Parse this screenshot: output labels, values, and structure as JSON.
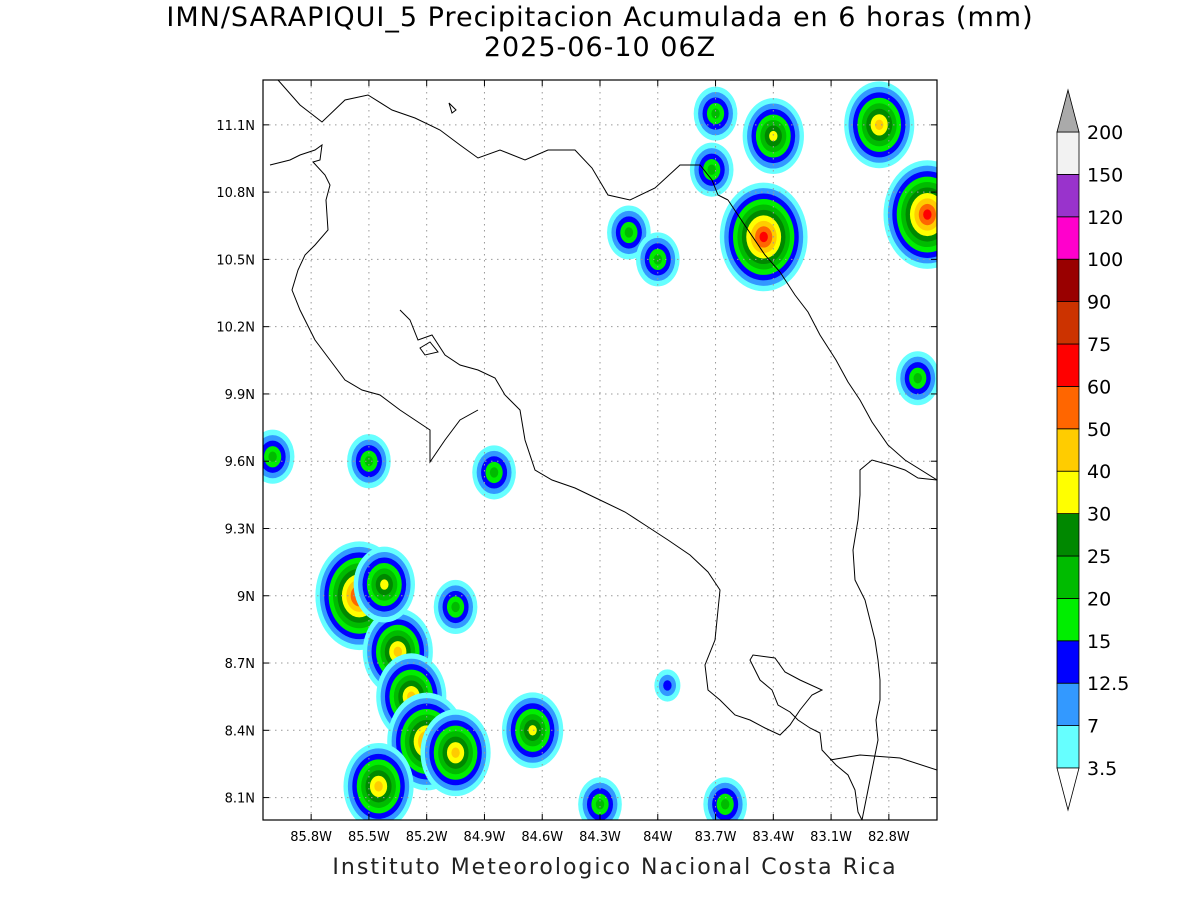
{
  "title_line1": "IMN/SARAPIQUI_5 Precipitacion Acumulada en 6 horas (mm)",
  "title_line2": "2025-06-10 06Z",
  "footer": "Instituto Meteorologico Nacional Costa Rica",
  "map": {
    "lon_range": [
      -86.05,
      -82.55
    ],
    "lat_range": [
      8.0,
      11.3
    ],
    "x_ticks": [
      "85.8W",
      "85.5W",
      "85.2W",
      "84.9W",
      "84.6W",
      "84.3W",
      "84W",
      "83.7W",
      "83.4W",
      "83.1W",
      "82.8W"
    ],
    "x_tick_values": [
      -85.8,
      -85.5,
      -85.2,
      -84.9,
      -84.6,
      -84.3,
      -84.0,
      -83.7,
      -83.4,
      -83.1,
      -82.8
    ],
    "y_ticks": [
      "8.1N",
      "8.4N",
      "8.7N",
      "9N",
      "9.3N",
      "9.6N",
      "9.9N",
      "10.2N",
      "10.5N",
      "10.8N",
      "11.1N"
    ],
    "y_tick_values": [
      8.1,
      8.4,
      8.7,
      9.0,
      9.3,
      9.6,
      9.9,
      10.2,
      10.5,
      10.8,
      11.1
    ],
    "grid": true,
    "grid_style": "dotted"
  },
  "colorbar": {
    "labels": [
      "3.5",
      "7",
      "12.5",
      "15",
      "20",
      "25",
      "30",
      "40",
      "50",
      "60",
      "75",
      "90",
      "100",
      "120",
      "150",
      "200"
    ],
    "colors": [
      "#66ffff",
      "#3399ff",
      "#0000ff",
      "#00ee00",
      "#00bb00",
      "#008800",
      "#ffff00",
      "#ffcc00",
      "#ff6600",
      "#ff0000",
      "#cc3300",
      "#990000",
      "#ff00cc",
      "#9933cc",
      "#f2f2f2",
      "#aaaaaa"
    ]
  },
  "precip_cells": [
    {
      "lon": -85.55,
      "lat": 9.0,
      "level": 9
    },
    {
      "lon": -85.35,
      "lat": 8.75,
      "level": 7
    },
    {
      "lon": -85.28,
      "lat": 8.55,
      "level": 7
    },
    {
      "lon": -85.2,
      "lat": 8.35,
      "level": 8
    },
    {
      "lon": -85.05,
      "lat": 8.3,
      "level": 7
    },
    {
      "lon": -85.45,
      "lat": 8.15,
      "level": 7
    },
    {
      "lon": -85.42,
      "lat": 9.05,
      "level": 6
    },
    {
      "lon": -84.65,
      "lat": 8.4,
      "level": 6
    },
    {
      "lon": -85.5,
      "lat": 9.6,
      "level": 4
    },
    {
      "lon": -83.45,
      "lat": 10.6,
      "level": 9
    },
    {
      "lon": -83.4,
      "lat": 11.05,
      "level": 6
    },
    {
      "lon": -82.85,
      "lat": 11.1,
      "level": 7
    },
    {
      "lon": -82.6,
      "lat": 10.7,
      "level": 9
    },
    {
      "lon": -82.65,
      "lat": 9.97,
      "level": 4
    },
    {
      "lon": -83.7,
      "lat": 11.15,
      "level": 4
    },
    {
      "lon": -84.15,
      "lat": 10.62,
      "level": 4
    },
    {
      "lon": -84.0,
      "lat": 10.5,
      "level": 4
    },
    {
      "lon": -83.72,
      "lat": 10.9,
      "level": 4
    },
    {
      "lon": -83.95,
      "lat": 8.6,
      "level": 2
    },
    {
      "lon": -83.65,
      "lat": 8.07,
      "level": 4
    },
    {
      "lon": -84.3,
      "lat": 8.07,
      "level": 4
    },
    {
      "lon": -85.05,
      "lat": 8.95,
      "level": 4
    },
    {
      "lon": -84.85,
      "lat": 9.55,
      "level": 4
    },
    {
      "lon": -86.0,
      "lat": 9.62,
      "level": 4
    }
  ]
}
